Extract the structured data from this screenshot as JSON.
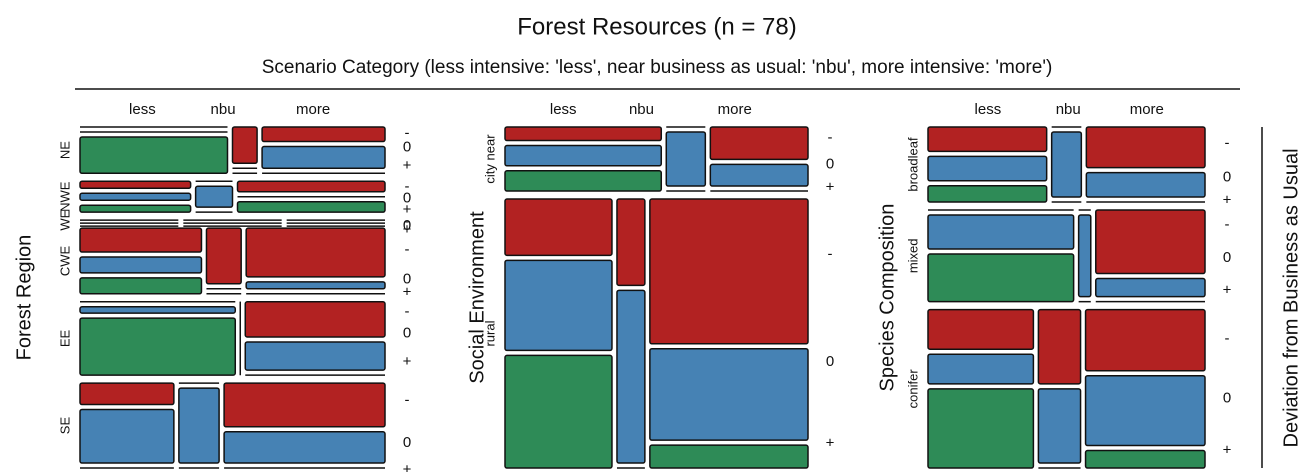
{
  "chart_data": {
    "type": "mosaic",
    "title": "Forest Resources (n = 78)",
    "subtitle": "Scenario Category (less intensive: 'less', near business as usual: 'nbu', more intensive: 'more')",
    "columns": [
      "less",
      "nbu",
      "more"
    ],
    "levels": [
      "-",
      "0",
      "+"
    ],
    "colors": [
      "#b22222",
      "#4682b4",
      "#2e8b57"
    ],
    "right_label": "Deviation from Business as Usual",
    "panels": [
      {
        "label": "Forest Region",
        "rows": [
          {
            "name": "NE",
            "counts": [
              [
                0,
                0,
                6
              ],
              [
                1,
                0,
                0
              ],
              [
                2,
                3,
                0
              ]
            ]
          },
          {
            "name": "NWE",
            "counts": [
              [
                1,
                1,
                1
              ],
              [
                0,
                1,
                0
              ],
              [
                2,
                0,
                2
              ]
            ]
          },
          {
            "name": "WE",
            "counts": [
              [
                0,
                0,
                0
              ],
              [
                0,
                0,
                0
              ],
              [
                0,
                0,
                0
              ]
            ]
          },
          {
            "name": "CWE",
            "counts": [
              [
                3,
                2,
                2
              ],
              [
                2,
                0,
                0
              ],
              [
                7,
                1,
                0
              ]
            ]
          },
          {
            "name": "EE",
            "counts": [
              [
                0,
                1,
                9
              ],
              [
                0,
                0,
                0
              ],
              [
                5,
                4,
                0
              ]
            ]
          },
          {
            "name": "SE",
            "counts": [
              [
                2,
                5,
                0
              ],
              [
                0,
                3,
                0
              ],
              [
                7,
                5,
                0
              ]
            ]
          }
        ]
      },
      {
        "label": "Social Environment",
        "rows": [
          {
            "name": "city near",
            "counts": [
              [
                2,
                3,
                3
              ],
              [
                0,
                2,
                0
              ],
              [
                3,
                2,
                0
              ]
            ]
          },
          {
            "name": "rural",
            "counts": [
              [
                5,
                8,
                10
              ],
              [
                2,
                4,
                0
              ],
              [
                19,
                12,
                3
              ]
            ]
          }
        ]
      },
      {
        "label": "Species Composition",
        "rows": [
          {
            "name": "broadleaf",
            "counts": [
              [
                3,
                3,
                2
              ],
              [
                0,
                2,
                0
              ],
              [
                5,
                3,
                0
              ]
            ]
          },
          {
            "name": "mixed",
            "counts": [
              [
                0,
                5,
                7
              ],
              [
                0,
                1,
                0
              ],
              [
                7,
                2,
                0
              ]
            ]
          },
          {
            "name": "conifer",
            "counts": [
              [
                4,
                3,
                8
              ],
              [
                3,
                3,
                0
              ],
              [
                7,
                8,
                2
              ]
            ]
          }
        ]
      }
    ]
  }
}
